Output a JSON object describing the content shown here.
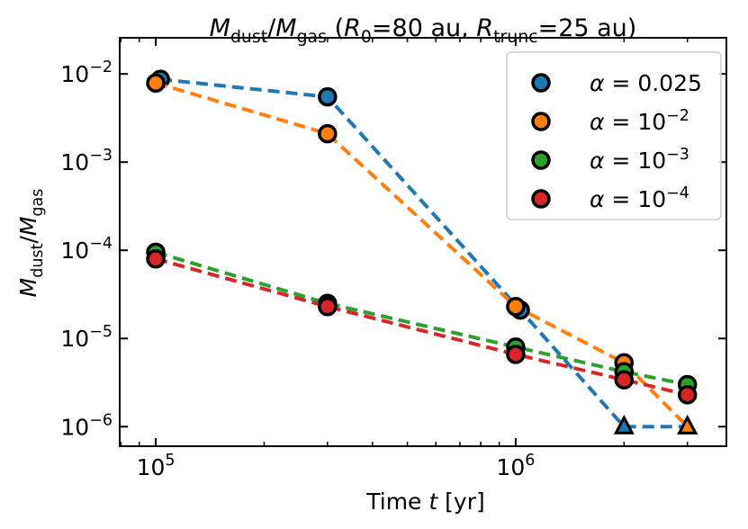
{
  "chart_data": {
    "type": "line",
    "title": [
      {
        "t": "M",
        "style": "italic"
      },
      {
        "t": "dust",
        "style": "sub"
      },
      {
        "t": "/"
      },
      {
        "t": "M",
        "style": "italic"
      },
      {
        "t": "gas",
        "style": "sub"
      },
      {
        "t": " ("
      },
      {
        "t": "R",
        "style": "italic"
      },
      {
        "t": "0",
        "style": "sub"
      },
      {
        "t": "=80 au, "
      },
      {
        "t": "R",
        "style": "italic"
      },
      {
        "t": "trunc",
        "style": "sub"
      },
      {
        "t": "=25 au)"
      }
    ],
    "xlabel": [
      {
        "t": "Time "
      },
      {
        "t": "t",
        "style": "italic"
      },
      {
        "t": " [yr]"
      }
    ],
    "ylabel": [
      {
        "t": "M",
        "style": "italic"
      },
      {
        "t": "dust",
        "style": "sub"
      },
      {
        "t": "/"
      },
      {
        "t": "M",
        "style": "italic"
      },
      {
        "t": "gas",
        "style": "sub"
      }
    ],
    "xscale": "log",
    "yscale": "log",
    "xlim": [
      79400,
      3850000
    ],
    "ylim": [
      6e-07,
      0.0257
    ],
    "xticks": [
      {
        "value": 100000,
        "label": [
          "10",
          "5"
        ]
      },
      {
        "value": 1000000,
        "label": [
          "10",
          "6"
        ]
      }
    ],
    "yticks": [
      {
        "value": 1e-06,
        "label": [
          "10",
          "−6"
        ]
      },
      {
        "value": 1e-05,
        "label": [
          "10",
          "−5"
        ]
      },
      {
        "value": 0.0001,
        "label": [
          "10",
          "−4"
        ]
      },
      {
        "value": 0.001,
        "label": [
          "10",
          "−3"
        ]
      },
      {
        "value": 0.01,
        "label": [
          "10",
          "−2"
        ]
      }
    ],
    "legend": "upper right",
    "series": [
      {
        "name": [
          {
            "t": "α",
            "style": "italic"
          },
          {
            "t": " = 0.025"
          }
        ],
        "color": "#1f77b4",
        "x": [
          103000,
          300000,
          1030000,
          2000000,
          3000000
        ],
        "values": [
          0.0087,
          0.0055,
          2.1e-05,
          1e-06,
          1e-06
        ],
        "markers": [
          "o",
          "o",
          "o",
          "^",
          "^"
        ]
      },
      {
        "name": [
          {
            "t": "α",
            "style": "italic"
          },
          {
            "t": " = 10"
          },
          {
            "t": "−2",
            "style": "sup"
          }
        ],
        "color": "#ff7f0e",
        "x": [
          100000,
          300000,
          1000000,
          2000000,
          3000000
        ],
        "values": [
          0.0079,
          0.0021,
          2.3e-05,
          5.3e-06,
          1e-06
        ],
        "markers": [
          "o",
          "o",
          "o",
          "o",
          "^"
        ]
      },
      {
        "name": [
          {
            "t": "α",
            "style": "italic"
          },
          {
            "t": " = 10"
          },
          {
            "t": "−3",
            "style": "sup"
          }
        ],
        "color": "#2ca02c",
        "x": [
          100000,
          300000,
          1000000,
          2000000,
          3000000
        ],
        "values": [
          9.5e-05,
          2.5e-05,
          8e-06,
          4.2e-06,
          3e-06
        ],
        "markers": [
          "o",
          "o",
          "o",
          "o",
          "o"
        ]
      },
      {
        "name": [
          {
            "t": "α",
            "style": "italic"
          },
          {
            "t": " = 10"
          },
          {
            "t": "−4",
            "style": "sup"
          }
        ],
        "color": "#d62728",
        "x": [
          100000,
          300000,
          1000000,
          2000000,
          3000000
        ],
        "values": [
          8e-05,
          2.3e-05,
          6.6e-06,
          3.4e-06,
          2.3e-06
        ],
        "markers": [
          "o",
          "o",
          "o",
          "o",
          "o"
        ]
      }
    ]
  }
}
